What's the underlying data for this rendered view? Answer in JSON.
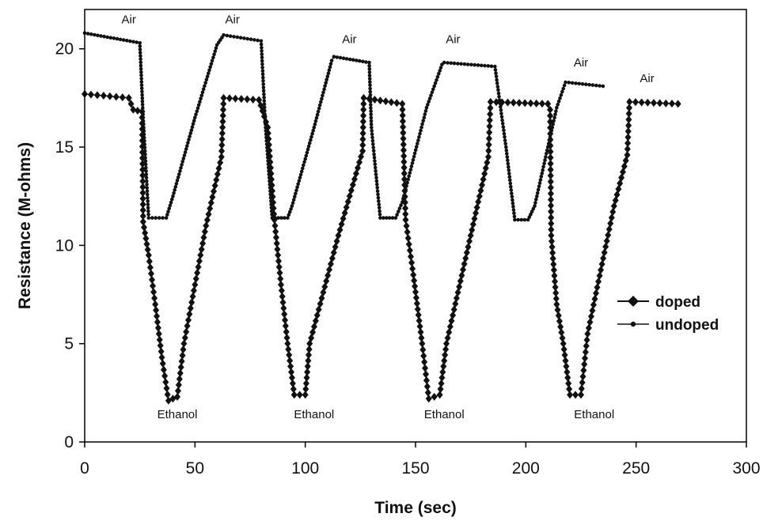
{
  "chart_data": {
    "type": "line",
    "title": "",
    "xlabel": "Time (sec)",
    "ylabel": "Resistance (M-ohms)",
    "xlim": [
      0,
      300
    ],
    "ylim": [
      0,
      22
    ],
    "x_ticks": [
      0,
      50,
      100,
      150,
      200,
      250,
      300
    ],
    "y_ticks": [
      0,
      5,
      10,
      15,
      20
    ],
    "grid": false,
    "legend_position": "right",
    "colors": {
      "doped": "#111111",
      "undoped": "#111111",
      "axis": "#000000"
    },
    "series": [
      {
        "name": "doped",
        "marker": "diamond",
        "points": [
          [
            0,
            17.7
          ],
          [
            20,
            17.5
          ],
          [
            22,
            16.9
          ],
          [
            26,
            16.8
          ],
          [
            26.5,
            11.2
          ],
          [
            29,
            9.5
          ],
          [
            32,
            7.0
          ],
          [
            35,
            4.3
          ],
          [
            38,
            2.1
          ],
          [
            42,
            2.3
          ],
          [
            45,
            5.0
          ],
          [
            55,
            11.0
          ],
          [
            62,
            14.5
          ],
          [
            63,
            17.5
          ],
          [
            79,
            17.4
          ],
          [
            83,
            16.0
          ],
          [
            86,
            11.3
          ],
          [
            89,
            8.0
          ],
          [
            92,
            5.0
          ],
          [
            95,
            2.4
          ],
          [
            100,
            2.4
          ],
          [
            102,
            5.0
          ],
          [
            115,
            10.5
          ],
          [
            126,
            14.8
          ],
          [
            126.5,
            17.5
          ],
          [
            144,
            17.2
          ],
          [
            145.5,
            11.3
          ],
          [
            149,
            8.5
          ],
          [
            153,
            5.0
          ],
          [
            156,
            2.2
          ],
          [
            161,
            2.4
          ],
          [
            164,
            5.0
          ],
          [
            175,
            10.5
          ],
          [
            183,
            14.5
          ],
          [
            184,
            17.3
          ],
          [
            210,
            17.2
          ],
          [
            211,
            16.9
          ],
          [
            211.5,
            10.5
          ],
          [
            214,
            7.0
          ],
          [
            217,
            5.0
          ],
          [
            220,
            2.4
          ],
          [
            225,
            2.4
          ],
          [
            228,
            5.5
          ],
          [
            240,
            12.0
          ],
          [
            246,
            14.6
          ],
          [
            247,
            17.3
          ],
          [
            269,
            17.2
          ]
        ]
      },
      {
        "name": "undoped",
        "marker": "dot",
        "points": [
          [
            0,
            20.8
          ],
          [
            25,
            20.3
          ],
          [
            26.5,
            16.5
          ],
          [
            29,
            11.4
          ],
          [
            37,
            11.4
          ],
          [
            40,
            12.5
          ],
          [
            50,
            16.5
          ],
          [
            60,
            20.2
          ],
          [
            63,
            20.7
          ],
          [
            80,
            20.4
          ],
          [
            82,
            16.0
          ],
          [
            85,
            11.4
          ],
          [
            92,
            11.4
          ],
          [
            94,
            12.0
          ],
          [
            104,
            16.0
          ],
          [
            112,
            19.4
          ],
          [
            113,
            19.6
          ],
          [
            129,
            19.3
          ],
          [
            130,
            16.0
          ],
          [
            134,
            11.4
          ],
          [
            141,
            11.4
          ],
          [
            144,
            12.2
          ],
          [
            155,
            17.0
          ],
          [
            162,
            19.2
          ],
          [
            163,
            19.3
          ],
          [
            186,
            19.1
          ],
          [
            191,
            15.0
          ],
          [
            195,
            11.3
          ],
          [
            201,
            11.3
          ],
          [
            204,
            12.0
          ],
          [
            214,
            17.0
          ],
          [
            218,
            18.3
          ],
          [
            235,
            18.1
          ]
        ]
      }
    ],
    "annotations": [
      {
        "text": "Air",
        "x": 20,
        "y": 21.3
      },
      {
        "text": "Air",
        "x": 67,
        "y": 21.3
      },
      {
        "text": "Air",
        "x": 120,
        "y": 20.3
      },
      {
        "text": "Air",
        "x": 167,
        "y": 20.3
      },
      {
        "text": "Air",
        "x": 225,
        "y": 19.1
      },
      {
        "text": "Air",
        "x": 255,
        "y": 18.3
      },
      {
        "text": "Ethanol",
        "x": 42,
        "y": 1.2
      },
      {
        "text": "Ethanol",
        "x": 104,
        "y": 1.2
      },
      {
        "text": "Ethanol",
        "x": 163,
        "y": 1.2
      },
      {
        "text": "Ethanol",
        "x": 231,
        "y": 1.2
      }
    ]
  }
}
